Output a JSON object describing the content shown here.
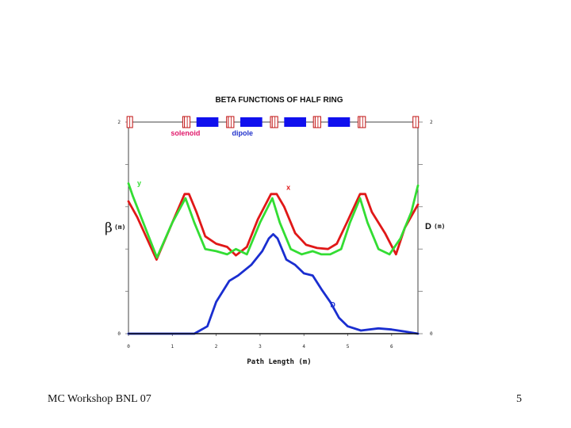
{
  "footer": {
    "left": "MC Workshop BNL 07",
    "right": "5"
  },
  "colors": {
    "x": "#e01818",
    "y": "#33dd33",
    "D": "#1a2ed0",
    "solenoid": "#e0186a",
    "dipole": "#2233cc",
    "element_fill": "#1010ee"
  },
  "chart_data": {
    "type": "line",
    "title": "BETA FUNCTIONS OF HALF RING",
    "xlabel": "Path Length (m)",
    "ylabel_left": "β",
    "ylabel_left_unit": "(m)",
    "ylabel_right": "D",
    "ylabel_right_unit": "(m)",
    "xlim": [
      0,
      6.6
    ],
    "xticks": [
      "0",
      "1",
      "2",
      "3",
      "4",
      "5",
      "6"
    ],
    "ylim": [
      0,
      2
    ],
    "y_left_ticks": [
      "0",
      "2"
    ],
    "y_right_ticks": [
      "0",
      "2"
    ],
    "grid": false,
    "lattice": {
      "labels": [
        {
          "text": "solenoid",
          "x": 1.3,
          "color_key": "solenoid"
        },
        {
          "text": "dipole",
          "x": 2.6,
          "color_key": "dipole"
        }
      ],
      "solenoids": [
        0.03,
        1.3,
        1.34,
        2.3,
        2.34,
        3.3,
        3.34,
        4.28,
        4.32,
        5.3,
        5.34,
        6.55
      ],
      "dipoles": [
        [
          1.55,
          2.05
        ],
        [
          2.55,
          3.05
        ],
        [
          3.55,
          4.05
        ],
        [
          4.55,
          5.05
        ]
      ]
    },
    "series": [
      {
        "name": "x",
        "color_key": "x",
        "x": [
          0,
          0.2,
          0.64,
          1.0,
          1.28,
          1.38,
          1.55,
          1.75,
          2.0,
          2.25,
          2.45,
          2.7,
          2.95,
          3.25,
          3.38,
          3.55,
          3.8,
          4.05,
          4.3,
          4.55,
          4.75,
          4.98,
          5.28,
          5.4,
          5.55,
          5.85,
          6.1,
          6.3,
          6.6
        ],
        "y": [
          1.25,
          1.1,
          0.7,
          1.05,
          1.32,
          1.32,
          1.15,
          0.92,
          0.85,
          0.82,
          0.74,
          0.82,
          1.08,
          1.32,
          1.32,
          1.2,
          0.95,
          0.84,
          0.81,
          0.8,
          0.85,
          1.05,
          1.32,
          1.32,
          1.15,
          0.95,
          0.75,
          1.0,
          1.22
        ]
      },
      {
        "name": "y",
        "color_key": "y",
        "x": [
          0,
          0.1,
          0.65,
          1.0,
          1.3,
          1.5,
          1.75,
          2.0,
          2.25,
          2.45,
          2.7,
          3.0,
          3.28,
          3.45,
          3.7,
          3.95,
          4.2,
          4.4,
          4.6,
          4.85,
          5.05,
          5.28,
          5.45,
          5.7,
          5.95,
          6.2,
          6.45,
          6.6
        ],
        "y": [
          1.42,
          1.3,
          0.72,
          1.05,
          1.28,
          1.05,
          0.8,
          0.78,
          0.75,
          0.8,
          0.75,
          1.05,
          1.28,
          1.05,
          0.8,
          0.75,
          0.78,
          0.75,
          0.75,
          0.8,
          1.05,
          1.28,
          1.05,
          0.8,
          0.75,
          0.9,
          1.15,
          1.4
        ]
      },
      {
        "name": "D",
        "color_key": "D",
        "x": [
          0,
          1.5,
          1.8,
          2.0,
          2.3,
          2.5,
          2.8,
          3.05,
          3.2,
          3.3,
          3.4,
          3.6,
          3.8,
          4.0,
          4.2,
          4.4,
          4.6,
          4.8,
          5.0,
          5.3,
          5.7,
          6.0,
          6.3,
          6.6
        ],
        "y": [
          0.0,
          0.0,
          0.07,
          0.3,
          0.5,
          0.55,
          0.65,
          0.78,
          0.9,
          0.94,
          0.9,
          0.7,
          0.65,
          0.57,
          0.55,
          0.42,
          0.3,
          0.15,
          0.07,
          0.03,
          0.05,
          0.04,
          0.02,
          0.0
        ]
      },
      {
        "name": "",
        "color_key": "baseline",
        "x": [
          0,
          3.3,
          6.6
        ],
        "y": [
          0.0,
          0.0,
          0.0
        ]
      }
    ],
    "annotations": [
      {
        "text": "y",
        "x": 0.2,
        "y": 1.4,
        "color_key": "y"
      },
      {
        "text": "x",
        "x": 3.6,
        "y": 1.36,
        "color_key": "x"
      },
      {
        "text": "D",
        "x": 4.6,
        "y": 0.25,
        "color_key": "D"
      }
    ]
  }
}
